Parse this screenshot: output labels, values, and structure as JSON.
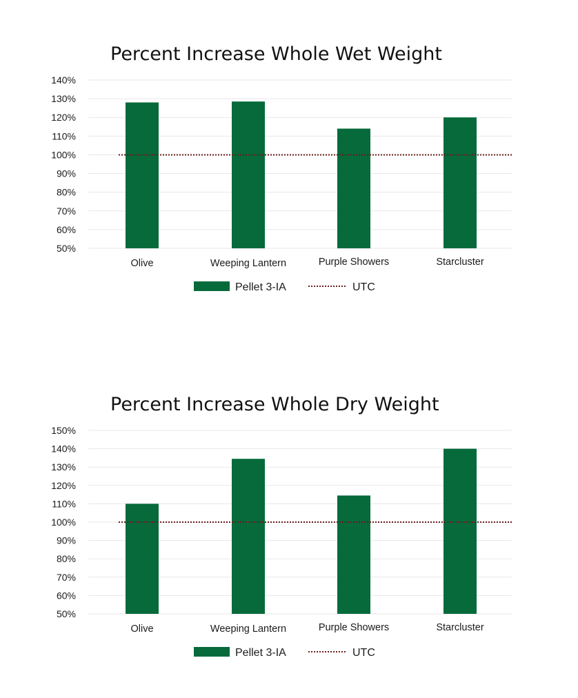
{
  "colors": {
    "bar": "#066a3b",
    "reference_line": "#6b1a1a",
    "grid": "#e7e7e7",
    "background": "#ffffff"
  },
  "chart_data": [
    {
      "type": "bar",
      "title": "Percent Increase Whole Wet Weight",
      "categories": [
        "Olive",
        "Weeping Lantern",
        "Purple Showers",
        "Starcluster"
      ],
      "series": [
        {
          "name": "Pellet 3-IA",
          "values": [
            128,
            128.5,
            114,
            120
          ],
          "style": "bar"
        },
        {
          "name": "UTC",
          "values": [
            100,
            100,
            100,
            100
          ],
          "style": "dotted-line"
        }
      ],
      "ylim": [
        50,
        140
      ],
      "yticks": [
        "50%",
        "60%",
        "70%",
        "80%",
        "90%",
        "100%",
        "110%",
        "120%",
        "130%",
        "140%"
      ],
      "grid": true,
      "legend": "bottom"
    },
    {
      "type": "bar",
      "title": "Percent Increase Whole Dry Weight",
      "categories": [
        "Olive",
        "Weeping Lantern",
        "Purple Showers",
        "Starcluster"
      ],
      "series": [
        {
          "name": "Pellet 3-IA",
          "values": [
            110,
            134.5,
            114.5,
            140
          ],
          "style": "bar"
        },
        {
          "name": "UTC",
          "values": [
            100,
            100,
            100,
            100
          ],
          "style": "dotted-line"
        }
      ],
      "ylim": [
        50,
        150
      ],
      "yticks": [
        "50%",
        "60%",
        "70%",
        "80%",
        "90%",
        "100%",
        "110%",
        "120%",
        "130%",
        "140%",
        "150%"
      ],
      "grid": true,
      "legend": "bottom"
    }
  ]
}
